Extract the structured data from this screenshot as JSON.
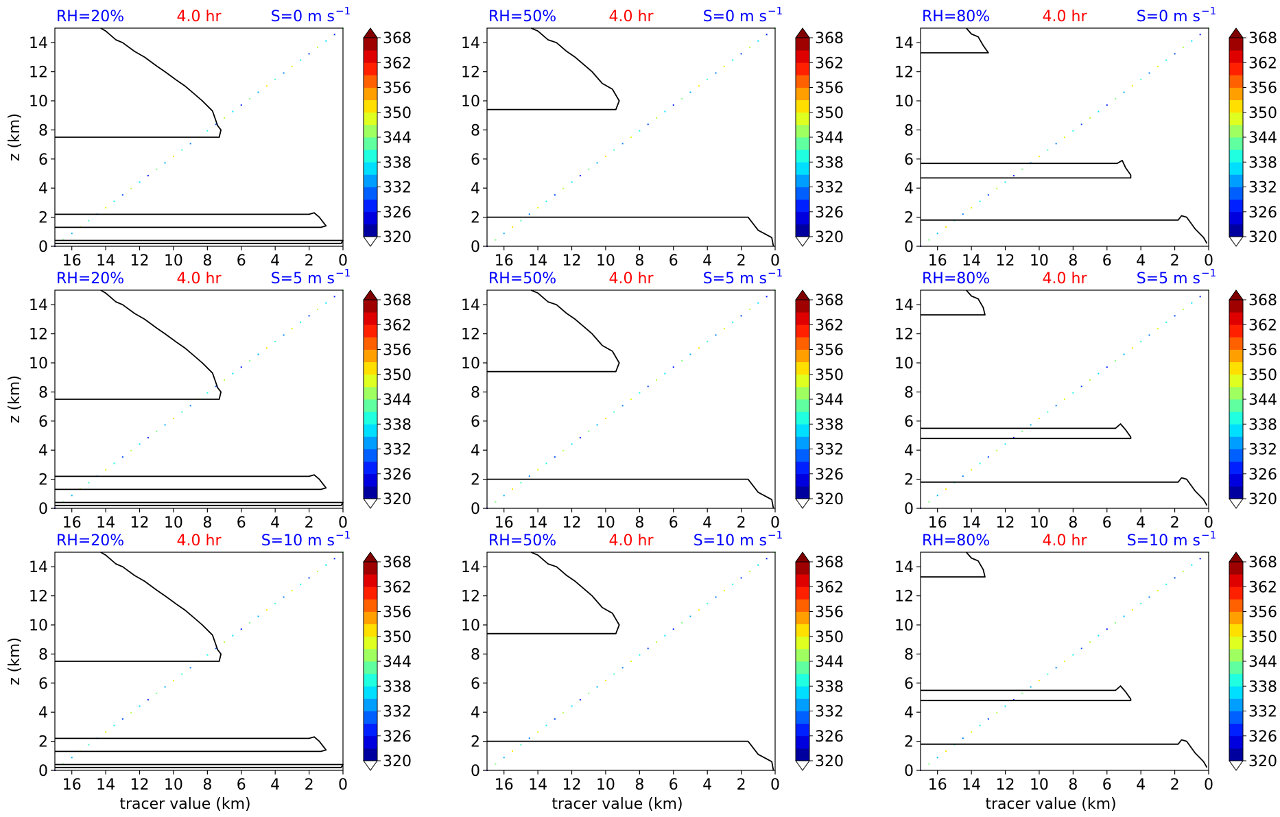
{
  "figure": {
    "rows": [
      "RH=20%",
      "RH=50%",
      "RH=80%"
    ],
    "time_label": "4.0 hr",
    "colors": {
      "rh": "#0000ff",
      "time": "#ff0000",
      "shear": "#0000ff",
      "contour": "#000000"
    },
    "colorbar": {
      "ticks": [
        "368",
        "362",
        "356",
        "350",
        "344",
        "338",
        "332",
        "326",
        "320"
      ],
      "vmin": 320,
      "vmax": 368,
      "extend": "both",
      "colormap": "jet"
    }
  },
  "chart_data": [
    {
      "id": "p00",
      "type": "contour",
      "rh_label": "RH=20%",
      "time_label": "4.0 hr",
      "shear_label": "S=0 m s",
      "shear_exp": "−1",
      "ylabel": "z (km)",
      "xlabel": "",
      "x_ticks": [
        "16",
        "14",
        "12",
        "10",
        "8",
        "6",
        "4",
        "2",
        "0"
      ],
      "y_ticks": [
        "0",
        "2",
        "4",
        "6",
        "8",
        "10",
        "12",
        "14"
      ],
      "xlim": [
        17,
        0
      ],
      "ylim": [
        0,
        15
      ],
      "contours": [
        [
          [
            14.3,
            15
          ],
          [
            14.0,
            14.8
          ],
          [
            13.4,
            14.2
          ],
          [
            13.0,
            14.0
          ],
          [
            12.3,
            13.4
          ],
          [
            11.7,
            13.0
          ],
          [
            11.0,
            12.4
          ],
          [
            10.5,
            12.0
          ],
          [
            9.8,
            11.4
          ],
          [
            9.3,
            11.0
          ],
          [
            8.7,
            10.4
          ],
          [
            8.3,
            10.0
          ],
          [
            7.7,
            9.3
          ],
          [
            7.4,
            8.3
          ],
          [
            7.2,
            8.0
          ],
          [
            7.3,
            7.5
          ],
          [
            17,
            7.5
          ]
        ],
        [
          [
            17,
            2.2
          ],
          [
            2.0,
            2.2
          ],
          [
            1.7,
            2.3
          ],
          [
            1.4,
            2.0
          ],
          [
            1.0,
            1.4
          ],
          [
            1.3,
            1.3
          ],
          [
            17,
            1.3
          ]
        ],
        [
          [
            17,
            0.4
          ],
          [
            0.0,
            0.4
          ],
          [
            0.1,
            0.2
          ],
          [
            17,
            0.2
          ]
        ]
      ]
    },
    {
      "id": "p01",
      "type": "contour",
      "rh_label": "RH=50%",
      "time_label": "4.0 hr",
      "shear_label": "S=0 m s",
      "shear_exp": "−1",
      "ylabel": "",
      "xlabel": "",
      "x_ticks": [
        "16",
        "14",
        "12",
        "10",
        "8",
        "6",
        "4",
        "2",
        "0"
      ],
      "y_ticks": [
        "0",
        "2",
        "4",
        "6",
        "8",
        "10",
        "12",
        "14"
      ],
      "xlim": [
        17,
        0
      ],
      "ylim": [
        0,
        15
      ],
      "contours": [
        [
          [
            14.4,
            15
          ],
          [
            14.0,
            14.8
          ],
          [
            13.4,
            14.2
          ],
          [
            12.9,
            14.0
          ],
          [
            12.3,
            13.4
          ],
          [
            11.8,
            13.0
          ],
          [
            11.2,
            12.4
          ],
          [
            10.8,
            12.0
          ],
          [
            10.2,
            11.2
          ],
          [
            9.6,
            10.8
          ],
          [
            9.2,
            10.0
          ],
          [
            9.4,
            9.4
          ],
          [
            17,
            9.4
          ]
        ],
        [
          [
            17,
            2.0
          ],
          [
            1.6,
            2.0
          ],
          [
            1.0,
            1.1
          ],
          [
            0.2,
            0.6
          ],
          [
            0.1,
            0.0
          ]
        ]
      ]
    },
    {
      "id": "p02",
      "type": "contour",
      "rh_label": "RH=80%",
      "time_label": "4.0 hr",
      "shear_label": "S=0 m s",
      "shear_exp": "−1",
      "ylabel": "",
      "xlabel": "",
      "x_ticks": [
        "16",
        "14",
        "12",
        "10",
        "8",
        "6",
        "4",
        "2",
        "0"
      ],
      "y_ticks": [
        "0",
        "2",
        "4",
        "6",
        "8",
        "10",
        "12",
        "14"
      ],
      "xlim": [
        17,
        0
      ],
      "ylim": [
        0,
        15
      ],
      "contours": [
        [
          [
            14.3,
            15
          ],
          [
            14.0,
            14.6
          ],
          [
            13.6,
            14.4
          ],
          [
            13.3,
            13.8
          ],
          [
            13.0,
            13.3
          ],
          [
            17,
            13.3
          ]
        ],
        [
          [
            17,
            5.7
          ],
          [
            5.4,
            5.7
          ],
          [
            5.1,
            5.9
          ],
          [
            4.9,
            5.4
          ],
          [
            4.6,
            4.9
          ],
          [
            4.6,
            4.7
          ],
          [
            17,
            4.7
          ]
        ],
        [
          [
            17,
            1.8
          ],
          [
            1.8,
            1.8
          ],
          [
            1.6,
            2.1
          ],
          [
            1.3,
            2.0
          ],
          [
            0.8,
            1.2
          ],
          [
            0.3,
            0.6
          ],
          [
            0.1,
            0.2
          ]
        ]
      ]
    },
    {
      "id": "p10",
      "type": "contour",
      "rh_label": "RH=20%",
      "time_label": "4.0 hr",
      "shear_label": "S=5 m s",
      "shear_exp": "−1",
      "ylabel": "z (km)",
      "xlabel": "",
      "x_ticks": [
        "16",
        "14",
        "12",
        "10",
        "8",
        "6",
        "4",
        "2",
        "0"
      ],
      "y_ticks": [
        "0",
        "2",
        "4",
        "6",
        "8",
        "10",
        "12",
        "14"
      ],
      "xlim": [
        17,
        0
      ],
      "ylim": [
        0,
        15
      ],
      "contours": [
        [
          [
            14.3,
            15
          ],
          [
            14.0,
            14.8
          ],
          [
            13.4,
            14.2
          ],
          [
            13.0,
            14.0
          ],
          [
            12.3,
            13.4
          ],
          [
            11.7,
            13.0
          ],
          [
            11.0,
            12.4
          ],
          [
            10.5,
            12.0
          ],
          [
            9.8,
            11.4
          ],
          [
            9.3,
            11.0
          ],
          [
            8.7,
            10.4
          ],
          [
            8.3,
            10.0
          ],
          [
            7.7,
            9.3
          ],
          [
            7.4,
            8.3
          ],
          [
            7.2,
            8.0
          ],
          [
            7.3,
            7.5
          ],
          [
            17,
            7.5
          ]
        ],
        [
          [
            17,
            2.2
          ],
          [
            2.0,
            2.2
          ],
          [
            1.7,
            2.3
          ],
          [
            1.4,
            2.0
          ],
          [
            1.0,
            1.4
          ],
          [
            1.3,
            1.3
          ],
          [
            17,
            1.3
          ]
        ],
        [
          [
            17,
            0.4
          ],
          [
            0.0,
            0.4
          ],
          [
            0.1,
            0.2
          ],
          [
            17,
            0.2
          ]
        ]
      ]
    },
    {
      "id": "p11",
      "type": "contour",
      "rh_label": "RH=50%",
      "time_label": "4.0 hr",
      "shear_label": "S=5 m s",
      "shear_exp": "−1",
      "ylabel": "",
      "xlabel": "",
      "x_ticks": [
        "16",
        "14",
        "12",
        "10",
        "8",
        "6",
        "4",
        "2",
        "0"
      ],
      "y_ticks": [
        "0",
        "2",
        "4",
        "6",
        "8",
        "10",
        "12",
        "14"
      ],
      "xlim": [
        17,
        0
      ],
      "ylim": [
        0,
        15
      ],
      "contours": [
        [
          [
            14.4,
            15
          ],
          [
            14.0,
            14.8
          ],
          [
            13.4,
            14.2
          ],
          [
            12.9,
            14.0
          ],
          [
            12.3,
            13.4
          ],
          [
            11.8,
            13.0
          ],
          [
            11.2,
            12.4
          ],
          [
            10.8,
            12.0
          ],
          [
            10.2,
            11.2
          ],
          [
            9.6,
            10.8
          ],
          [
            9.2,
            10.0
          ],
          [
            9.4,
            9.4
          ],
          [
            17,
            9.4
          ]
        ],
        [
          [
            17,
            2.0
          ],
          [
            1.6,
            2.0
          ],
          [
            1.0,
            1.1
          ],
          [
            0.2,
            0.6
          ],
          [
            0.1,
            0.0
          ]
        ]
      ]
    },
    {
      "id": "p12",
      "type": "contour",
      "rh_label": "RH=80%",
      "time_label": "4.0 hr",
      "shear_label": "S=5 m s",
      "shear_exp": "−1",
      "ylabel": "",
      "xlabel": "",
      "x_ticks": [
        "16",
        "14",
        "12",
        "10",
        "8",
        "6",
        "4",
        "2",
        "0"
      ],
      "y_ticks": [
        "0",
        "2",
        "4",
        "6",
        "8",
        "10",
        "12",
        "14"
      ],
      "xlim": [
        17,
        0
      ],
      "ylim": [
        0,
        15
      ],
      "contours": [
        [
          [
            14.3,
            15
          ],
          [
            14.0,
            14.6
          ],
          [
            13.6,
            14.4
          ],
          [
            13.3,
            13.8
          ],
          [
            13.2,
            13.3
          ],
          [
            17,
            13.3
          ]
        ],
        [
          [
            17,
            5.5
          ],
          [
            5.5,
            5.5
          ],
          [
            5.2,
            5.8
          ],
          [
            4.9,
            5.4
          ],
          [
            4.6,
            4.9
          ],
          [
            4.6,
            4.8
          ],
          [
            17,
            4.8
          ]
        ],
        [
          [
            17,
            1.8
          ],
          [
            1.8,
            1.8
          ],
          [
            1.6,
            2.1
          ],
          [
            1.3,
            2.0
          ],
          [
            0.8,
            1.2
          ],
          [
            0.3,
            0.6
          ],
          [
            0.1,
            0.2
          ]
        ]
      ]
    },
    {
      "id": "p20",
      "type": "contour",
      "rh_label": "RH=20%",
      "time_label": "4.0 hr",
      "shear_label": "S=10 m s",
      "shear_exp": "−1",
      "ylabel": "z (km)",
      "xlabel": "tracer value (km)",
      "x_ticks": [
        "16",
        "14",
        "12",
        "10",
        "8",
        "6",
        "4",
        "2",
        "0"
      ],
      "y_ticks": [
        "0",
        "2",
        "4",
        "6",
        "8",
        "10",
        "12",
        "14"
      ],
      "xlim": [
        17,
        0
      ],
      "ylim": [
        0,
        15
      ],
      "contours": [
        [
          [
            14.3,
            15
          ],
          [
            14.0,
            14.8
          ],
          [
            13.4,
            14.2
          ],
          [
            13.0,
            14.0
          ],
          [
            12.3,
            13.4
          ],
          [
            11.7,
            13.0
          ],
          [
            11.0,
            12.4
          ],
          [
            10.5,
            12.0
          ],
          [
            9.8,
            11.4
          ],
          [
            9.3,
            11.0
          ],
          [
            8.7,
            10.4
          ],
          [
            8.3,
            10.0
          ],
          [
            7.7,
            9.3
          ],
          [
            7.4,
            8.3
          ],
          [
            7.2,
            8.0
          ],
          [
            7.3,
            7.5
          ],
          [
            17,
            7.5
          ]
        ],
        [
          [
            17,
            2.2
          ],
          [
            2.0,
            2.2
          ],
          [
            1.7,
            2.3
          ],
          [
            1.4,
            2.0
          ],
          [
            1.0,
            1.4
          ],
          [
            1.3,
            1.3
          ],
          [
            17,
            1.3
          ]
        ],
        [
          [
            17,
            0.4
          ],
          [
            0.0,
            0.4
          ],
          [
            0.1,
            0.2
          ],
          [
            17,
            0.2
          ]
        ]
      ]
    },
    {
      "id": "p21",
      "type": "contour",
      "rh_label": "RH=50%",
      "time_label": "4.0 hr",
      "shear_label": "S=10 m s",
      "shear_exp": "−1",
      "ylabel": "",
      "xlabel": "tracer value (km)",
      "x_ticks": [
        "16",
        "14",
        "12",
        "10",
        "8",
        "6",
        "4",
        "2",
        "0"
      ],
      "y_ticks": [
        "0",
        "2",
        "4",
        "6",
        "8",
        "10",
        "12",
        "14"
      ],
      "xlim": [
        17,
        0
      ],
      "ylim": [
        0,
        15
      ],
      "contours": [
        [
          [
            14.4,
            15
          ],
          [
            14.0,
            14.8
          ],
          [
            13.4,
            14.2
          ],
          [
            12.9,
            14.0
          ],
          [
            12.3,
            13.4
          ],
          [
            11.8,
            13.0
          ],
          [
            11.2,
            12.4
          ],
          [
            10.8,
            12.0
          ],
          [
            10.2,
            11.2
          ],
          [
            9.6,
            10.8
          ],
          [
            9.2,
            10.0
          ],
          [
            9.4,
            9.4
          ],
          [
            17,
            9.4
          ]
        ],
        [
          [
            17,
            2.0
          ],
          [
            1.6,
            2.0
          ],
          [
            1.0,
            1.1
          ],
          [
            0.2,
            0.6
          ],
          [
            0.1,
            0.0
          ]
        ]
      ]
    },
    {
      "id": "p22",
      "type": "contour",
      "rh_label": "RH=80%",
      "time_label": "4.0 hr",
      "shear_label": "S=10 m s",
      "shear_exp": "−1",
      "ylabel": "",
      "xlabel": "tracer value (km)",
      "x_ticks": [
        "16",
        "14",
        "12",
        "10",
        "8",
        "6",
        "4",
        "2",
        "0"
      ],
      "y_ticks": [
        "0",
        "2",
        "4",
        "6",
        "8",
        "10",
        "12",
        "14"
      ],
      "xlim": [
        17,
        0
      ],
      "ylim": [
        0,
        15
      ],
      "contours": [
        [
          [
            14.3,
            15
          ],
          [
            14.0,
            14.6
          ],
          [
            13.6,
            14.4
          ],
          [
            13.3,
            13.8
          ],
          [
            13.2,
            13.3
          ],
          [
            17,
            13.3
          ]
        ],
        [
          [
            17,
            5.5
          ],
          [
            5.5,
            5.5
          ],
          [
            5.2,
            5.8
          ],
          [
            4.9,
            5.4
          ],
          [
            4.6,
            4.9
          ],
          [
            4.6,
            4.8
          ],
          [
            17,
            4.8
          ]
        ],
        [
          [
            17,
            1.8
          ],
          [
            1.8,
            1.8
          ],
          [
            1.6,
            2.1
          ],
          [
            1.3,
            2.0
          ],
          [
            0.8,
            1.2
          ],
          [
            0.3,
            0.6
          ],
          [
            0.1,
            0.2
          ]
        ]
      ]
    }
  ]
}
